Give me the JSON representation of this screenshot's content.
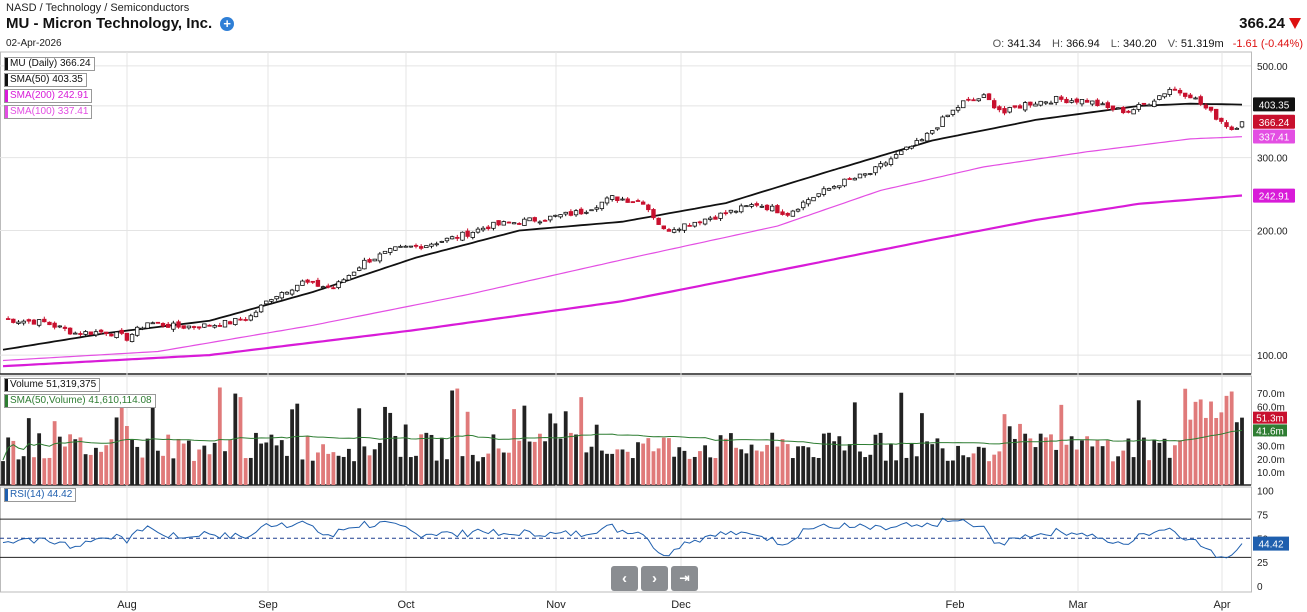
{
  "header": {
    "breadcrumb": "NASD / Technology / Semiconductors",
    "title": "MU - Micron Technology, Inc.",
    "add_icon": "plus-circle-icon",
    "date": "02-Apr-2026",
    "last_price": "366.24",
    "ohlc": {
      "o_label": "O:",
      "o": "341.34",
      "h_label": "H:",
      "h": "366.94",
      "l_label": "L:",
      "l": "340.20",
      "v_label": "V:",
      "v": "51.319m",
      "change": "-1.61 (-0.44%)"
    }
  },
  "legend": {
    "price": [
      {
        "text": "MU (Daily) 366.24",
        "color": "#111111"
      },
      {
        "text": "SMA(50) 403.35",
        "color": "#111111"
      },
      {
        "text": "SMA(200) 242.91",
        "color": "#d81bd8"
      },
      {
        "text": "SMA(100) 337.41",
        "color": "#e34fe3"
      }
    ],
    "volume": [
      {
        "text": "Volume 51,319,375",
        "color": "#111111"
      },
      {
        "text": "SMA(50,Volume) 41,610,114.08",
        "color": "#2e7d32"
      }
    ],
    "rsi": [
      {
        "text": "RSI(14) 44.42",
        "color": "#1f5fae"
      }
    ]
  },
  "nav": {
    "prev_icon": "chevron-left-icon",
    "next_icon": "chevron-right-icon",
    "end_icon": "jump-to-end-icon"
  },
  "chart_data": {
    "type": "candlestick",
    "log_scale": true,
    "x_months": [
      "Aug",
      "Sep",
      "Oct",
      "Nov",
      "Dec",
      "Feb",
      "Mar",
      "Apr"
    ],
    "price_axis_ticks": [
      "500.00",
      "400.00",
      "300.00",
      "200.00",
      "100.00"
    ],
    "price_axis_values": [
      500,
      400,
      300,
      200,
      100
    ],
    "ylim": [
      90,
      540
    ],
    "badges": [
      {
        "text": "403.35",
        "value": 403.35,
        "color": "#111111"
      },
      {
        "text": "366.24",
        "value": 366.24,
        "color": "#c8102e"
      },
      {
        "text": "337.41",
        "value": 337.41,
        "color": "#e34fe3"
      },
      {
        "text": "242.91",
        "value": 242.91,
        "color": "#d81bd8"
      }
    ],
    "close_series_waypoints": [
      [
        0,
        122
      ],
      [
        8,
        120
      ],
      [
        14,
        113
      ],
      [
        20,
        114
      ],
      [
        24,
        110
      ],
      [
        28,
        120
      ],
      [
        34,
        117
      ],
      [
        40,
        118
      ],
      [
        44,
        120
      ],
      [
        48,
        124
      ],
      [
        52,
        138
      ],
      [
        58,
        150
      ],
      [
        64,
        145
      ],
      [
        70,
        168
      ],
      [
        76,
        180
      ],
      [
        82,
        185
      ],
      [
        88,
        193
      ],
      [
        94,
        205
      ],
      [
        100,
        210
      ],
      [
        106,
        215
      ],
      [
        112,
        222
      ],
      [
        118,
        240
      ],
      [
        124,
        235
      ],
      [
        128,
        200
      ],
      [
        134,
        210
      ],
      [
        140,
        220
      ],
      [
        146,
        232
      ],
      [
        152,
        220
      ],
      [
        156,
        238
      ],
      [
        162,
        260
      ],
      [
        168,
        275
      ],
      [
        172,
        298
      ],
      [
        178,
        330
      ],
      [
        182,
        370
      ],
      [
        186,
        408
      ],
      [
        190,
        420
      ],
      [
        194,
        385
      ],
      [
        198,
        405
      ],
      [
        204,
        415
      ],
      [
        210,
        412
      ],
      [
        214,
        395
      ],
      [
        218,
        388
      ],
      [
        222,
        408
      ],
      [
        226,
        440
      ],
      [
        230,
        425
      ],
      [
        234,
        385
      ],
      [
        238,
        352
      ],
      [
        240,
        366
      ]
    ],
    "sma50_waypoints": [
      [
        0,
        103
      ],
      [
        20,
        113
      ],
      [
        40,
        121
      ],
      [
        60,
        142
      ],
      [
        80,
        172
      ],
      [
        100,
        200
      ],
      [
        120,
        210
      ],
      [
        140,
        233
      ],
      [
        160,
        278
      ],
      [
        180,
        330
      ],
      [
        200,
        370
      ],
      [
        220,
        400
      ],
      [
        230,
        405
      ],
      [
        240,
        403
      ]
    ],
    "sma100_waypoints": [
      [
        0,
        97
      ],
      [
        30,
        102
      ],
      [
        60,
        118
      ],
      [
        90,
        140
      ],
      [
        120,
        170
      ],
      [
        150,
        205
      ],
      [
        170,
        250
      ],
      [
        190,
        285
      ],
      [
        210,
        310
      ],
      [
        230,
        333
      ],
      [
        240,
        337
      ]
    ],
    "sma200_waypoints": [
      [
        0,
        94
      ],
      [
        40,
        100
      ],
      [
        80,
        115
      ],
      [
        120,
        135
      ],
      [
        150,
        160
      ],
      [
        180,
        190
      ],
      [
        200,
        212
      ],
      [
        220,
        232
      ],
      [
        240,
        243
      ]
    ],
    "volume": {
      "axis_ticks": [
        "70.0m",
        "60.0m",
        "50.0m",
        "40.0m",
        "30.0m",
        "20.0m",
        "10.0m"
      ],
      "axis_values": [
        70,
        60,
        50,
        40,
        30,
        20,
        10
      ],
      "badges": [
        {
          "text": "51.3m",
          "value": 51.3,
          "color": "#c8102e"
        },
        {
          "text": "41.6m",
          "value": 41.6,
          "color": "#2e7d32"
        }
      ],
      "last_value_m": 51.32,
      "sma50_last_m": 41.61
    },
    "rsi": {
      "axis_ticks": [
        "100",
        "75",
        "50",
        "25",
        "0"
      ],
      "axis_values": [
        100,
        75,
        50,
        25,
        0
      ],
      "overbought": 70,
      "oversold": 30,
      "badge": {
        "text": "44.42",
        "value": 44.42,
        "color": "#1f5fae"
      },
      "last": 44.42
    }
  }
}
